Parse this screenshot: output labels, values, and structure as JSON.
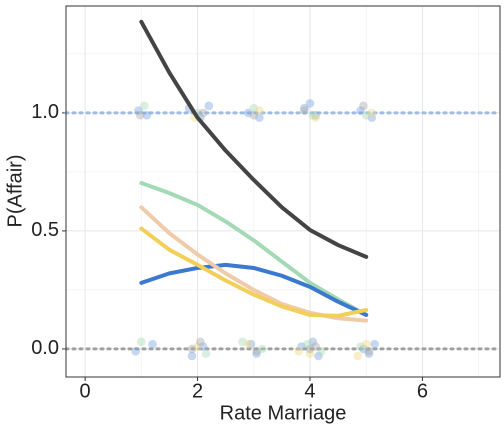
{
  "chart_data": {
    "type": "line",
    "xlabel": "Rate Marriage",
    "ylabel": "P(Affair)",
    "xlim": [
      -0.34,
      7.38
    ],
    "ylim": [
      -0.119,
      1.453
    ],
    "xticks": [
      0,
      2,
      4,
      6
    ],
    "yticks": [
      {
        "value": 0,
        "label": "0.0"
      },
      {
        "value": 0.5,
        "label": "0.5"
      },
      {
        "value": 1,
        "label": "1.0"
      }
    ],
    "grid": true,
    "reference_lines": [
      {
        "value": 0,
        "color": "#a0a0a0"
      },
      {
        "value": 1,
        "color": "#9dbbe3"
      }
    ],
    "series": [
      {
        "color": "#444444",
        "x": [
          1,
          1.5,
          2,
          2.5,
          3,
          3.5,
          4,
          4.5,
          5
        ],
        "values": [
          1.386,
          1.17,
          0.98,
          0.84,
          0.716,
          0.6,
          0.504,
          0.44,
          0.39
        ]
      },
      {
        "color": "#a3d9b5",
        "x": [
          1,
          1.5,
          2,
          2.5,
          3,
          3.5,
          4,
          4.5,
          5
        ],
        "values": [
          0.703,
          0.66,
          0.61,
          0.54,
          0.46,
          0.37,
          0.28,
          0.21,
          0.144
        ]
      },
      {
        "color": "#3b78cf",
        "x": [
          1,
          1.5,
          2,
          2.5,
          3,
          3.5,
          4,
          4.5,
          5
        ],
        "values": [
          0.28,
          0.32,
          0.343,
          0.356,
          0.343,
          0.31,
          0.263,
          0.2,
          0.144
        ]
      },
      {
        "color": "#f0cba9",
        "x": [
          1,
          1.5,
          2,
          2.5,
          3,
          3.5,
          4,
          4.5,
          5
        ],
        "values": [
          0.6,
          0.49,
          0.4,
          0.32,
          0.25,
          0.19,
          0.153,
          0.13,
          0.12
        ]
      },
      {
        "color": "#f2cf5b",
        "x": [
          1,
          1.5,
          2,
          2.5,
          3,
          3.5,
          4,
          4.5,
          5
        ],
        "values": [
          0.51,
          0.42,
          0.356,
          0.29,
          0.23,
          0.18,
          0.144,
          0.14,
          0.165
        ]
      }
    ],
    "points": [
      {
        "color": "#7ea6e0",
        "x": [
          0.95,
          1.1,
          1.85,
          2.05,
          2.2,
          2.9,
          3.1,
          3.9,
          4.1,
          4.0,
          4.9,
          5.1,
          0.9,
          1.2,
          1.9,
          2.1,
          2.95,
          3.05,
          3.85,
          4.15,
          4.05,
          4.95,
          5.05,
          5.15
        ],
        "values": [
          1.01,
          0.99,
          1.02,
          0.98,
          1.03,
          1.0,
          0.98,
          1.02,
          0.99,
          1.04,
          1.01,
          0.98,
          -0.01,
          0.02,
          -0.03,
          0.01,
          0.02,
          -0.02,
          0.01,
          -0.03,
          0.03,
          0.0,
          -0.02,
          0.02
        ]
      },
      {
        "color": "#a8dcb8",
        "x": [
          1.05,
          2.0,
          3.0,
          4.05,
          5.0,
          1.0,
          2.15,
          3.15,
          3.95,
          4.9,
          2.8,
          4.2
        ],
        "values": [
          1.03,
          1.0,
          1.02,
          0.99,
          0.99,
          0.03,
          -0.02,
          0.0,
          0.02,
          0.01,
          0.03,
          -0.01
        ]
      },
      {
        "color": "#eed98a",
        "x": [
          1.95,
          3.1,
          4.1,
          5.1,
          2.0,
          2.9,
          4.0,
          5.0,
          3.8,
          4.85
        ],
        "values": [
          0.98,
          1.01,
          0.98,
          1.0,
          0.01,
          0.02,
          -0.02,
          0.02,
          -0.01,
          -0.03
        ]
      },
      {
        "color": "#aaaaaa",
        "x": [
          0.98,
          2.1,
          3.0,
          3.9,
          4.95,
          1.9,
          3.05,
          4.1,
          5.05,
          4.0,
          2.05
        ],
        "values": [
          0.99,
          1.0,
          0.99,
          1.01,
          1.03,
          0.0,
          -0.01,
          0.01,
          -0.01,
          0.0,
          0.03
        ]
      }
    ]
  }
}
